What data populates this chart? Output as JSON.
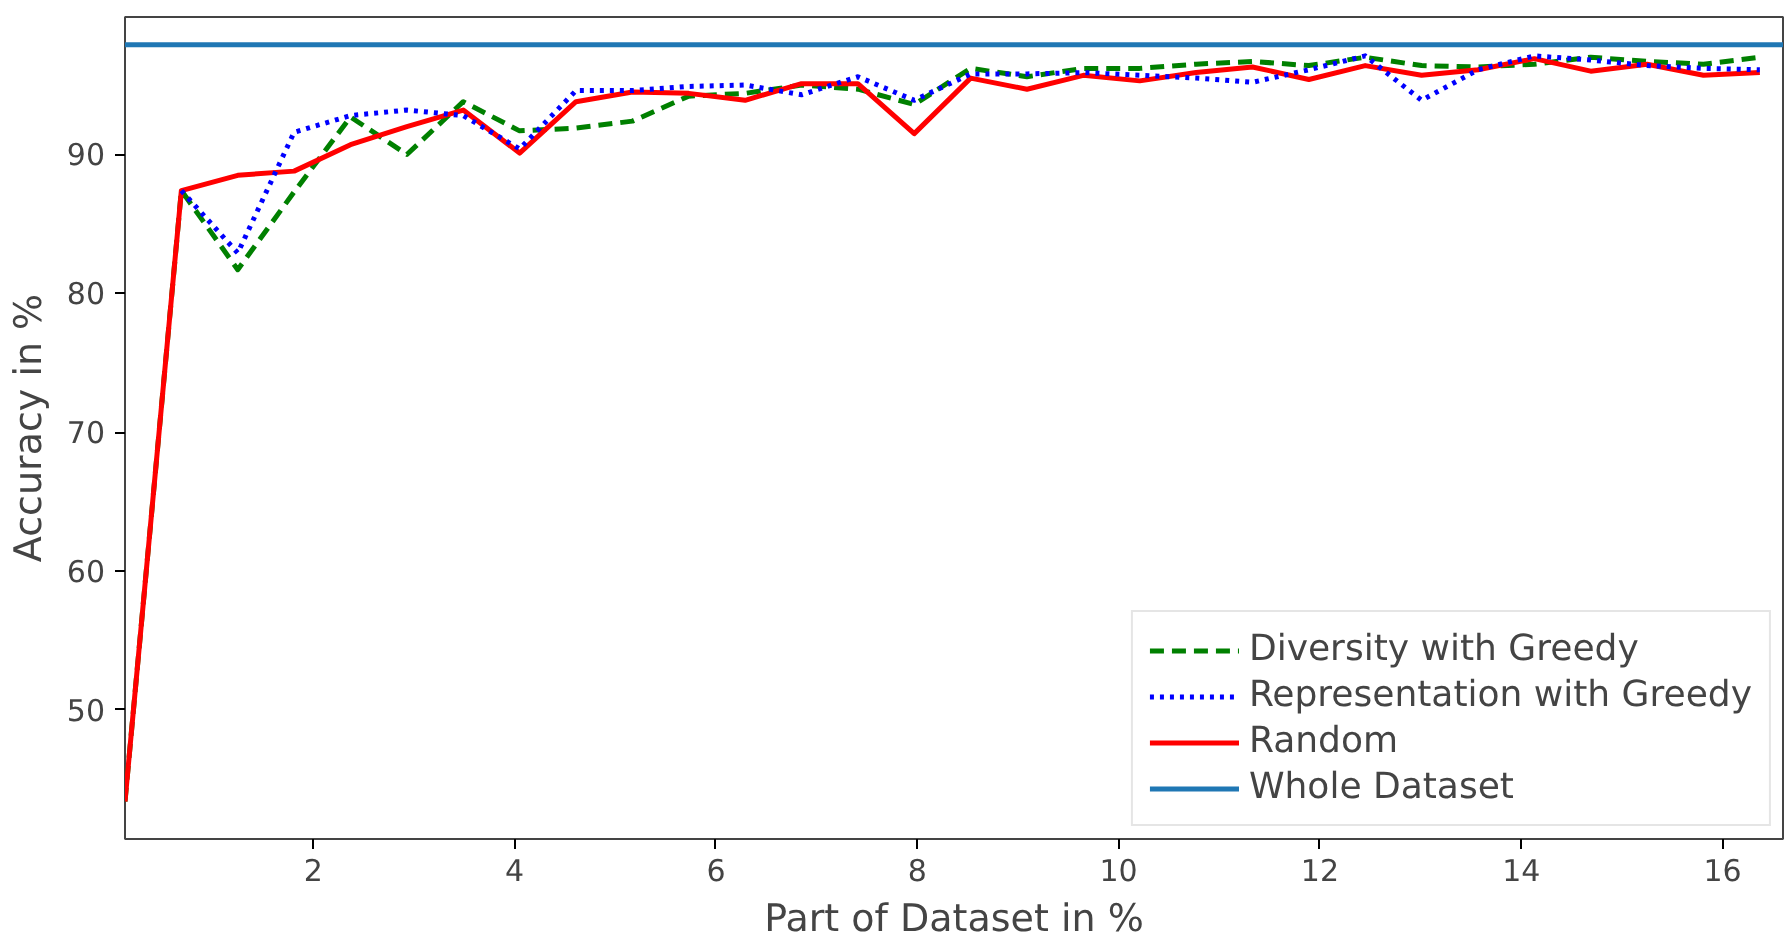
{
  "chart_data": {
    "type": "line",
    "xlabel": "Part of Dataset in %",
    "ylabel": "Accuracy in %",
    "x": [
      0.13,
      0.69,
      1.25,
      1.81,
      2.37,
      2.93,
      3.49,
      4.05,
      4.61,
      5.17,
      5.73,
      6.29,
      6.85,
      7.41,
      7.97,
      8.53,
      9.09,
      9.65,
      10.21,
      10.77,
      11.33,
      11.89,
      12.45,
      13.01,
      13.57,
      14.13,
      14.69,
      15.25,
      15.81,
      16.37
    ],
    "series": [
      {
        "name": "Diversity with Greedy",
        "color": "#008000",
        "line_style": "dashed",
        "values": [
          43.4,
          87.4,
          81.7,
          87.3,
          92.7,
          90.0,
          93.8,
          91.7,
          91.9,
          92.4,
          94.2,
          94.4,
          95.0,
          94.7,
          93.6,
          96.2,
          95.6,
          96.2,
          96.2,
          96.5,
          96.7,
          96.4,
          97.0,
          96.4,
          96.3,
          96.5,
          97.0,
          96.7,
          96.5,
          97.0
        ]
      },
      {
        "name": "Representation with Greedy",
        "color": "#0000ff",
        "line_style": "dotted",
        "values": [
          null,
          87.4,
          82.9,
          91.6,
          92.8,
          93.2,
          92.8,
          90.4,
          94.6,
          94.6,
          94.9,
          95.0,
          94.3,
          95.6,
          93.9,
          95.8,
          95.8,
          95.9,
          95.7,
          95.5,
          95.2,
          96.1,
          97.1,
          93.9,
          96.1,
          97.1,
          96.8,
          96.4,
          96.2,
          96.1
        ]
      },
      {
        "name": "Random",
        "color": "#ff0000",
        "line_style": "solid",
        "values": [
          43.4,
          87.4,
          88.5,
          88.8,
          90.7,
          92.0,
          93.2,
          90.1,
          93.8,
          94.5,
          94.4,
          93.9,
          95.1,
          95.1,
          91.5,
          95.5,
          94.7,
          95.7,
          95.3,
          95.9,
          96.3,
          95.4,
          96.4,
          95.7,
          96.1,
          96.9,
          96.0,
          96.5,
          95.7,
          95.9
        ]
      },
      {
        "name": "Whole Dataset",
        "color": "#1f77b4",
        "line_style": "solid",
        "x": [
          0.13,
          16.6
        ],
        "values": [
          97.9,
          97.9
        ]
      }
    ],
    "xlim": [
      0.13,
      16.6
    ],
    "ylim": [
      40.7,
      99.9
    ],
    "xticks": [
      2,
      4,
      6,
      8,
      10,
      12,
      14,
      16
    ],
    "yticks": [
      50,
      60,
      70,
      80,
      90
    ],
    "grid": false,
    "legend": "bottom right"
  }
}
